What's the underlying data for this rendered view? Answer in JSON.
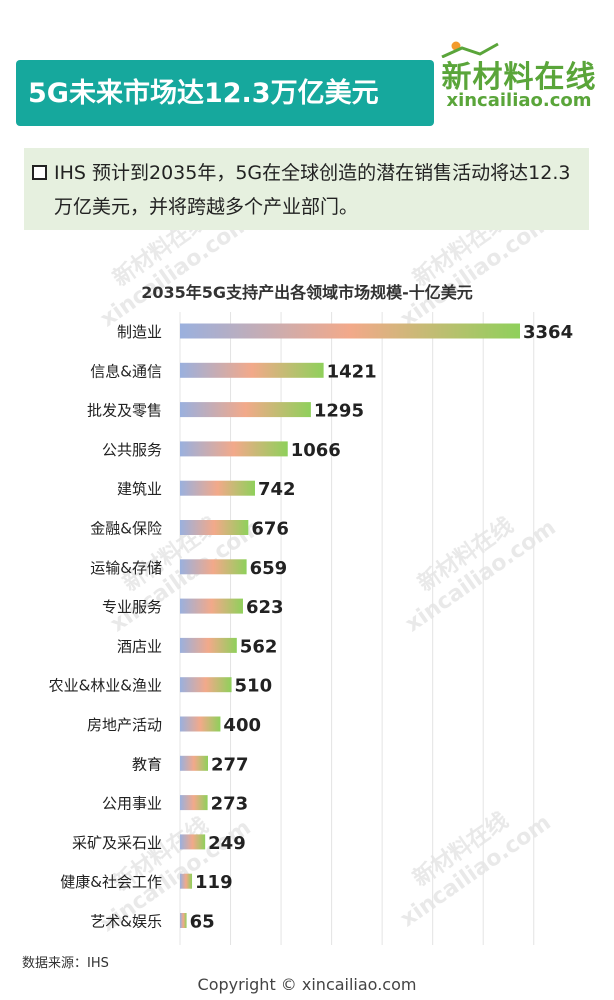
{
  "title": "5G未来市场达12.3万亿美元",
  "logo": {
    "cn": "新材料在线",
    "en": "xincailiao.com"
  },
  "note": "IHS 预计到2035年，5G在全球创造的潜在销售活动将达12.3万亿美元，并将跨越多个产业部门。",
  "source": "数据来源：IHS",
  "copyright": "Copyright © xincailiao.com",
  "watermark": {
    "cn": "新材料在线",
    "en": "xincailiao.com"
  },
  "colors": {
    "title_bg": "#16a89d",
    "note_bg": "#e6f0df",
    "logo_green": "#5aa53a",
    "bar_start": "#9ab0de",
    "bar_mid": "#f2a98a",
    "bar_end": "#8fd05b"
  },
  "chart_data": {
    "type": "bar",
    "orientation": "horizontal",
    "title": "2035年5G支持产出各领域市场规模-十亿美元",
    "categories": [
      "制造业",
      "信息&通信",
      "批发及零售",
      "公共服务",
      "建筑业",
      "金融&保险",
      "运输&存储",
      "专业服务",
      "酒店业",
      "农业&林业&渔业",
      "房地产活动",
      "教育",
      "公用事业",
      "采矿及采石业",
      "健康&社会工作",
      "艺术&娱乐"
    ],
    "values": [
      3364,
      1421,
      1295,
      1066,
      742,
      676,
      659,
      623,
      562,
      510,
      400,
      277,
      273,
      249,
      119,
      65
    ],
    "xlim": [
      0,
      3500
    ],
    "grid": true,
    "legend": false
  }
}
